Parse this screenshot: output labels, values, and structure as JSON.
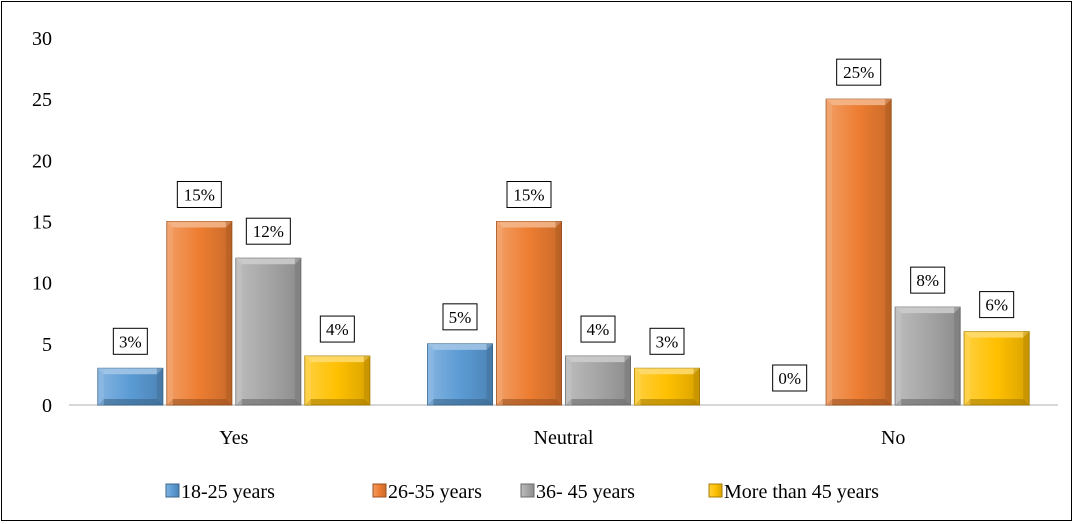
{
  "chart_data": {
    "type": "bar",
    "categories": [
      "Yes",
      "Neutral",
      "No"
    ],
    "series": [
      {
        "name": "18-25 years",
        "values": [
          3,
          5,
          0
        ],
        "labels": [
          "3%",
          "5%",
          "0%"
        ],
        "color": "#5B9BD5"
      },
      {
        "name": "26-35 years",
        "values": [
          15,
          15,
          25
        ],
        "labels": [
          "15%",
          "15%",
          "25%"
        ],
        "color": "#ED7D31"
      },
      {
        "name": "36- 45 years",
        "values": [
          12,
          4,
          8
        ],
        "labels": [
          "12%",
          "4%",
          "8%"
        ],
        "color": "#A5A5A5"
      },
      {
        "name": "More than 45 years",
        "values": [
          4,
          3,
          6
        ],
        "labels": [
          "4%",
          "3%",
          "6%"
        ],
        "color": "#FFC000"
      }
    ],
    "ylim": [
      0,
      30
    ],
    "yticks": [
      "0",
      "5",
      "10",
      "15",
      "20",
      "25",
      "30"
    ],
    "grid": false,
    "legend": "bottom",
    "title": "",
    "xlabel": "",
    "ylabel": ""
  }
}
